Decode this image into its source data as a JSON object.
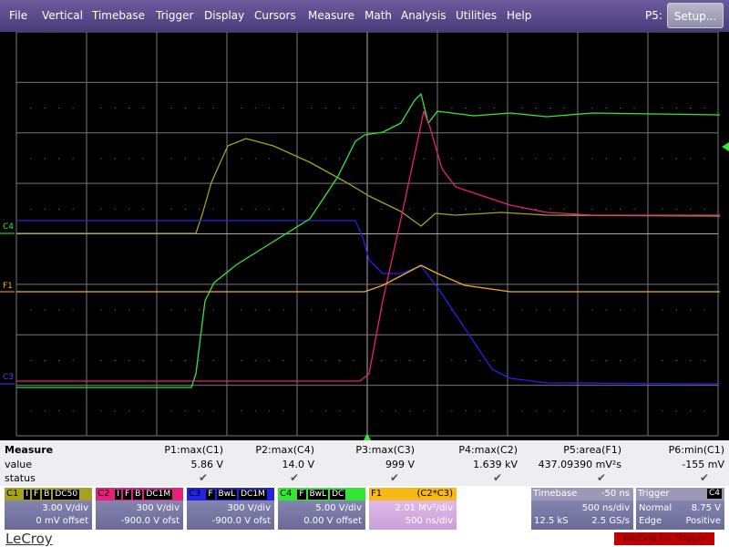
{
  "menu": {
    "items": [
      "File",
      "Vertical",
      "Timebase",
      "Trigger",
      "Display",
      "Cursors",
      "Measure",
      "Math",
      "Analysis",
      "Utilities",
      "Help"
    ],
    "p5_label": "P5:",
    "setup_button": "Setup..."
  },
  "markers": {
    "c4": "C4",
    "f1": "F1",
    "c3": "C3"
  },
  "measure": {
    "title": "Measure",
    "row_value": "value",
    "row_status": "status",
    "params": [
      {
        "label": "P1:max(C1)",
        "value": "5.86 V"
      },
      {
        "label": "P2:max(C4)",
        "value": "14.0 V"
      },
      {
        "label": "P3:max(C3)",
        "value": "999 V"
      },
      {
        "label": "P4:max(C2)",
        "value": "1.639 kV"
      },
      {
        "label": "P5:area(F1)",
        "value": "437.09390 mV²s"
      },
      {
        "label": "P6:min(C1)",
        "value": "-155 mV"
      }
    ]
  },
  "channels": [
    {
      "name": "C1",
      "tags": [
        "I",
        "F",
        "B",
        "DC50"
      ],
      "scale": "3.00 V/div",
      "offset": "0 mV offset"
    },
    {
      "name": "C2",
      "tags": [
        "I",
        "F",
        "B",
        "DC1M"
      ],
      "scale": "300 V/div",
      "offset": "-900.0 V ofst"
    },
    {
      "name": "C3",
      "tags": [
        "F",
        "BwL",
        "DC1M"
      ],
      "scale": "300 V/div",
      "offset": "-900.0 V ofst"
    },
    {
      "name": "C4",
      "tags": [
        "F",
        "BwL",
        "DC"
      ],
      "scale": "5.00 V/div",
      "offset": "0.00 V offset"
    }
  ],
  "math": {
    "name": "F1",
    "formula": "(C2*C3)",
    "scale": "2.01 MV²/div",
    "timebase": "500 ns/div"
  },
  "timebase": {
    "label": "Timebase",
    "delay": "-50 ns",
    "scale": "500 ns/div",
    "samples": "12.5 kS",
    "rate": "2.5 GS/s"
  },
  "trigger": {
    "label": "Trigger",
    "source": "C4",
    "mode": "Normal",
    "level": "8.75 V",
    "type": "Edge",
    "slope": "Positive"
  },
  "brand": "LeCroy",
  "status": "Waiting for Trigger"
}
